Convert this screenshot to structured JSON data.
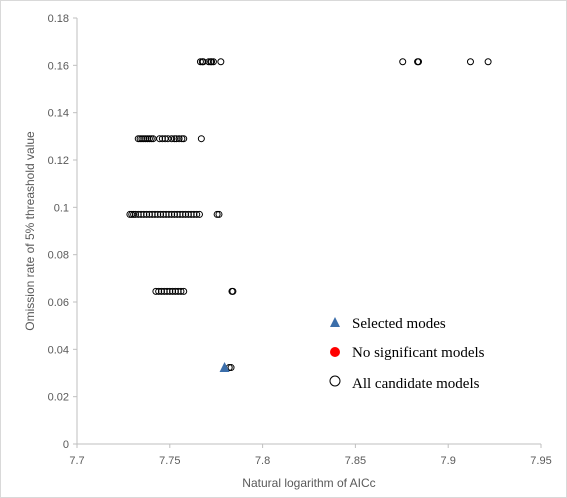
{
  "chart_data": {
    "type": "scatter",
    "title": "",
    "xlabel": "Natural logarithm of AICc",
    "ylabel": "Omission rate of 5% threashold value",
    "xlim": [
      7.7,
      7.95
    ],
    "ylim": [
      0,
      0.18
    ],
    "xticks": [
      "7.7",
      "7.75",
      "7.8",
      "7.85",
      "7.9",
      "7.95"
    ],
    "yticks": [
      "0",
      "0.02",
      "0.04",
      "0.06",
      "0.08",
      "0.1",
      "0.12",
      "0.14",
      "0.16",
      "0.18"
    ],
    "grid": false,
    "legend_position": "bottom-right",
    "series": [
      {
        "name": "All candidate models",
        "marker": "open-circle",
        "color": "#000000",
        "points": [
          [
            7.7665,
            0.1615
          ],
          [
            7.7675,
            0.1615
          ],
          [
            7.768,
            0.1615
          ],
          [
            7.771,
            0.1615
          ],
          [
            7.772,
            0.1615
          ],
          [
            7.7725,
            0.1615
          ],
          [
            7.7735,
            0.1615
          ],
          [
            7.7775,
            0.1615
          ],
          [
            7.8755,
            0.1615
          ],
          [
            7.8835,
            0.1615
          ],
          [
            7.884,
            0.1615
          ],
          [
            7.912,
            0.1615
          ],
          [
            7.9215,
            0.1615
          ],
          [
            7.733,
            0.129
          ],
          [
            7.734,
            0.129
          ],
          [
            7.735,
            0.129
          ],
          [
            7.736,
            0.129
          ],
          [
            7.737,
            0.129
          ],
          [
            7.738,
            0.129
          ],
          [
            7.739,
            0.129
          ],
          [
            7.74,
            0.129
          ],
          [
            7.741,
            0.129
          ],
          [
            7.7445,
            0.129
          ],
          [
            7.746,
            0.129
          ],
          [
            7.7475,
            0.129
          ],
          [
            7.749,
            0.129
          ],
          [
            7.751,
            0.129
          ],
          [
            7.7525,
            0.129
          ],
          [
            7.7535,
            0.129
          ],
          [
            7.755,
            0.129
          ],
          [
            7.7565,
            0.129
          ],
          [
            7.7575,
            0.129
          ],
          [
            7.767,
            0.129
          ],
          [
            7.7285,
            0.097
          ],
          [
            7.7295,
            0.097
          ],
          [
            7.7305,
            0.097
          ],
          [
            7.7315,
            0.097
          ],
          [
            7.733,
            0.097
          ],
          [
            7.7345,
            0.097
          ],
          [
            7.736,
            0.097
          ],
          [
            7.7375,
            0.097
          ],
          [
            7.739,
            0.097
          ],
          [
            7.7405,
            0.097
          ],
          [
            7.742,
            0.097
          ],
          [
            7.7435,
            0.097
          ],
          [
            7.745,
            0.097
          ],
          [
            7.7465,
            0.097
          ],
          [
            7.748,
            0.097
          ],
          [
            7.7495,
            0.097
          ],
          [
            7.751,
            0.097
          ],
          [
            7.7525,
            0.097
          ],
          [
            7.754,
            0.097
          ],
          [
            7.7555,
            0.097
          ],
          [
            7.757,
            0.097
          ],
          [
            7.7585,
            0.097
          ],
          [
            7.76,
            0.097
          ],
          [
            7.7615,
            0.097
          ],
          [
            7.763,
            0.097
          ],
          [
            7.7645,
            0.097
          ],
          [
            7.766,
            0.097
          ],
          [
            7.7755,
            0.097
          ],
          [
            7.7765,
            0.097
          ],
          [
            7.7425,
            0.0645
          ],
          [
            7.744,
            0.0645
          ],
          [
            7.7455,
            0.0645
          ],
          [
            7.747,
            0.0645
          ],
          [
            7.7485,
            0.0645
          ],
          [
            7.75,
            0.0645
          ],
          [
            7.7515,
            0.0645
          ],
          [
            7.753,
            0.0645
          ],
          [
            7.7545,
            0.0645
          ],
          [
            7.756,
            0.0645
          ],
          [
            7.7575,
            0.0645
          ],
          [
            7.7835,
            0.0645
          ],
          [
            7.784,
            0.0645
          ],
          [
            7.782,
            0.0323
          ],
          [
            7.783,
            0.0323
          ]
        ]
      },
      {
        "name": "No significant models",
        "marker": "filled-circle",
        "color": "#ff0000",
        "points": []
      },
      {
        "name": "Selected modes",
        "marker": "triangle",
        "color": "#3b6eaa",
        "points": [
          [
            7.7795,
            0.0323
          ]
        ]
      }
    ],
    "legend": [
      {
        "label": "Selected modes",
        "marker": "triangle",
        "color": "#3b6eaa"
      },
      {
        "label": "No significant models",
        "marker": "filled-circle",
        "color": "#ff0000"
      },
      {
        "label": "All candidate models",
        "marker": "open-circle",
        "color": "#000000"
      }
    ]
  }
}
